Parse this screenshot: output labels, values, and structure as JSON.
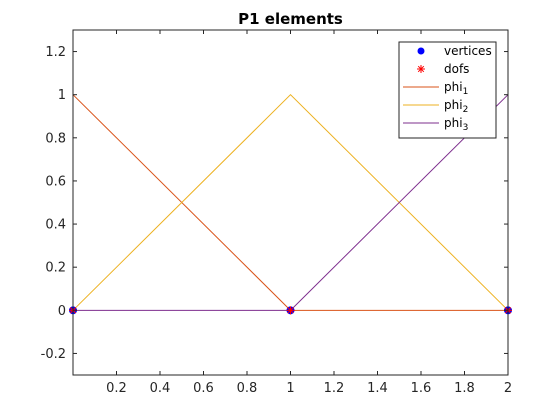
{
  "chart_data": {
    "type": "line",
    "title": "P1 elements",
    "xlabel": "",
    "ylabel": "",
    "xlim": [
      0,
      2
    ],
    "ylim": [
      -0.3,
      1.3
    ],
    "xticks": [
      0.2,
      0.4,
      0.6,
      0.8,
      1,
      1.2,
      1.4,
      1.6,
      1.8,
      2
    ],
    "xtick_labels": [
      "0.2",
      "0.4",
      "0.6",
      "0.8",
      "1",
      "1.2",
      "1.4",
      "1.6",
      "1.8",
      "2"
    ],
    "yticks": [
      -0.2,
      0,
      0.2,
      0.4,
      0.6,
      0.8,
      1,
      1.2
    ],
    "ytick_labels": [
      "-0.2",
      "0",
      "0.2",
      "0.4",
      "0.6",
      "0.8",
      "1",
      "1.2"
    ],
    "grid": false,
    "legend_position": "top-right",
    "series": [
      {
        "name": "vertices",
        "marker": "filled-circle",
        "color": "#0000ff",
        "x": [
          0,
          1,
          2
        ],
        "y": [
          0,
          0,
          0
        ]
      },
      {
        "name": "dofs",
        "marker": "asterisk",
        "color": "#ff0000",
        "x": [
          0,
          1,
          2
        ],
        "y": [
          0,
          0,
          0
        ]
      },
      {
        "name": "phi",
        "subscript": "1",
        "color": "#d95319",
        "x": [
          0,
          1,
          2
        ],
        "y": [
          1,
          0,
          0
        ]
      },
      {
        "name": "phi",
        "subscript": "2",
        "color": "#edb120",
        "x": [
          0,
          1,
          2
        ],
        "y": [
          0,
          1,
          0
        ]
      },
      {
        "name": "phi",
        "subscript": "3",
        "color": "#7e2f8e",
        "x": [
          0,
          1,
          2
        ],
        "y": [
          0,
          0,
          1
        ]
      }
    ]
  }
}
